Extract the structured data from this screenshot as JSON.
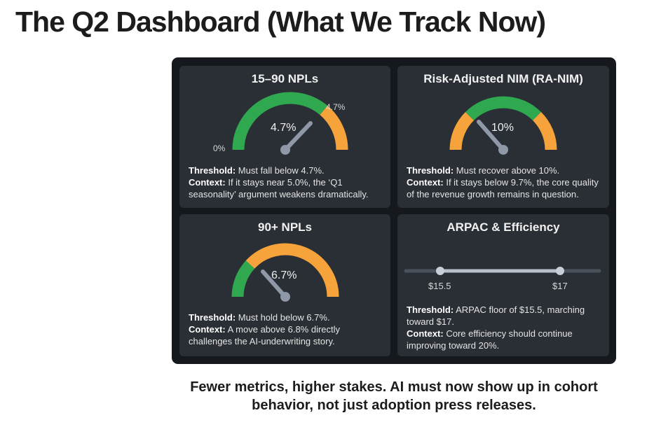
{
  "title": "The Q2 Dashboard (What We Track Now)",
  "panels": [
    {
      "title": "15–90 NPLs",
      "gauge_value": "4.7%",
      "min_label": "0%",
      "marker_label": "4.7%",
      "threshold_label": "Threshold:",
      "threshold_text": " Must fall below 4.7%.",
      "context_label": "Context:",
      "context_text": " If it stays near 5.0%, the ‘Q1 seasonality’ argument weakens dramatically."
    },
    {
      "title": "Risk-Adjusted NIM (RA-NIM)",
      "gauge_value": "10%",
      "threshold_label": "Threshold:",
      "threshold_text": " Must recover above 10%.",
      "context_label": "Context:",
      "context_text": " If it stays below 9.7%, the core quality of the revenue growth remains in question."
    },
    {
      "title": "90+ NPLs",
      "gauge_value": "6.7%",
      "threshold_label": "Threshold:",
      "threshold_text": " Must hold below 6.7%.",
      "context_label": "Context:",
      "context_text": " A move above 6.8% directly challenges the AI-underwriting story."
    },
    {
      "title": "ARPAC & Efficiency",
      "slider_start": "$15.5",
      "slider_end": "$17",
      "threshold_label": "Threshold:",
      "threshold_text": " ARPAC floor of $15.5, marching toward $17.",
      "context_label": "Context:",
      "context_text": " Core efficiency should continue improving toward 20%."
    }
  ],
  "footer": "Fewer metrics, higher stakes. AI must now show up in cohort behavior, not just adoption press releases.",
  "colors": {
    "green": "#2fa84f",
    "orange": "#f5a33a",
    "needle": "#8e98a6",
    "track": "#4a515b",
    "dark_bg": "#15181c",
    "panel_bg": "#2a2e35"
  }
}
